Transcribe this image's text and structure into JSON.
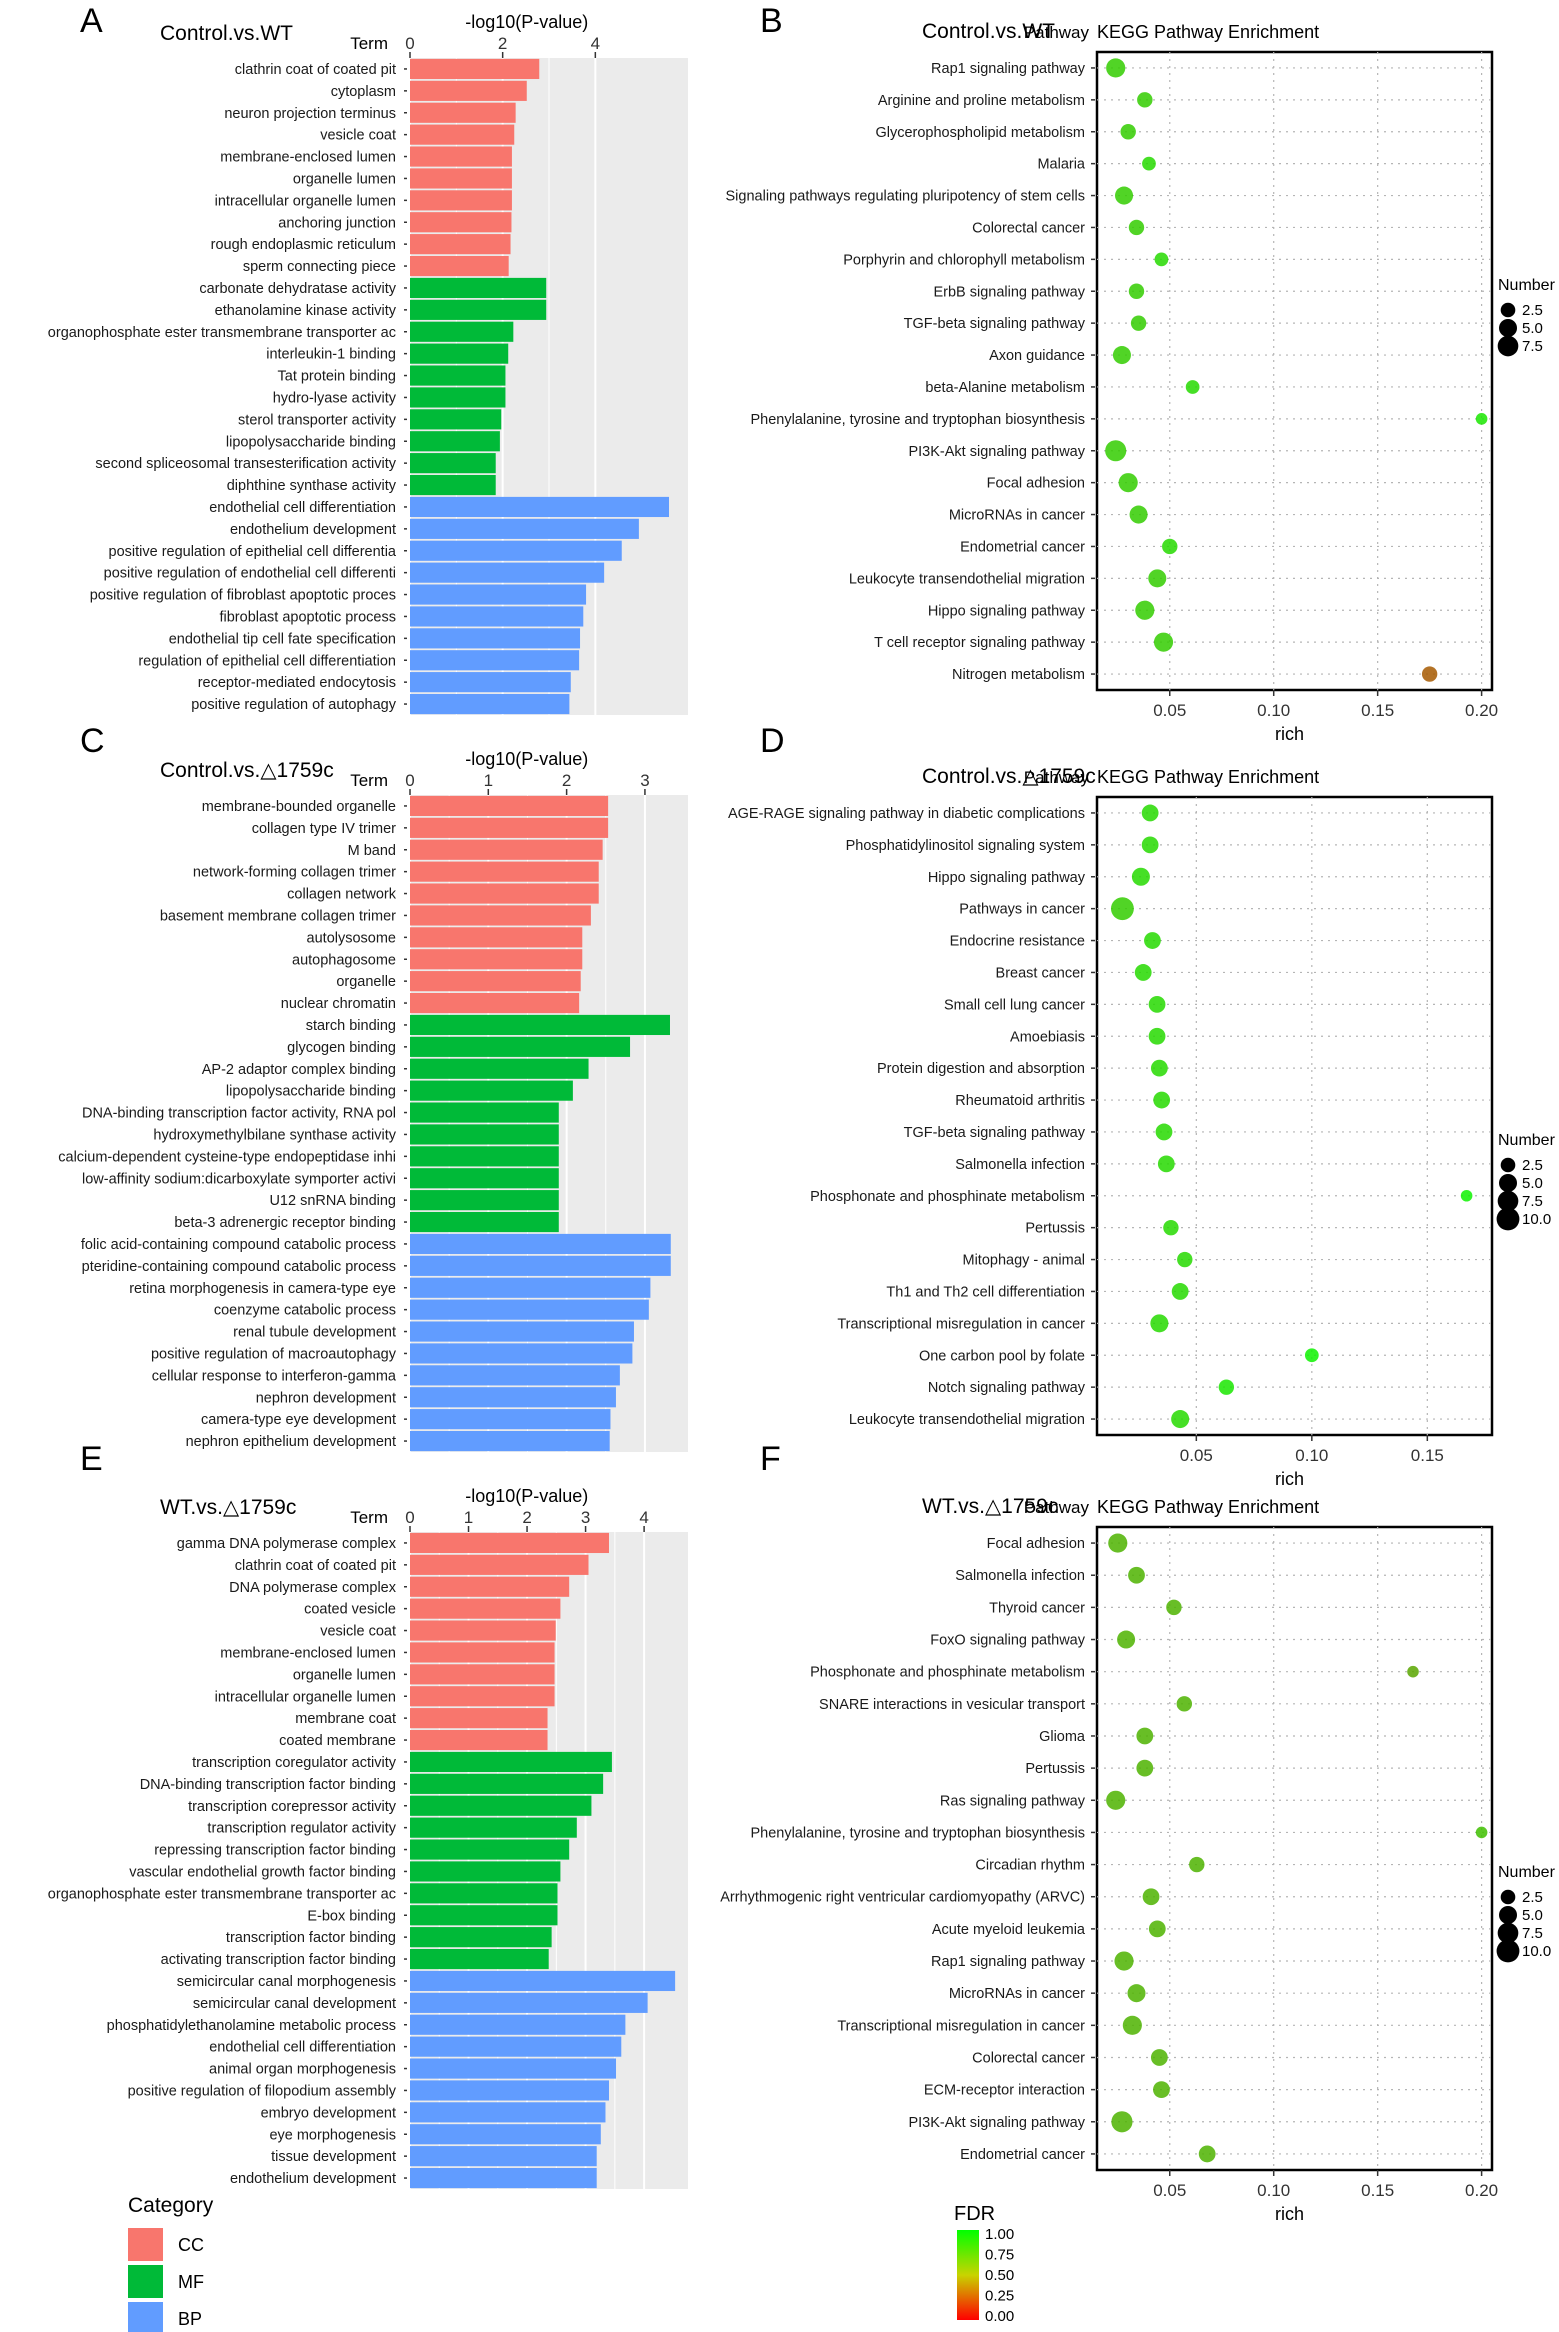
{
  "figure": {
    "x_title": "-log10(P-value)",
    "term_label": "Term",
    "pathway_label": "Pathway",
    "enrichment_title": "KEGG Pathway Enrichment",
    "rich_label": "rich",
    "number_label": "Number",
    "fdr_label": "FDR",
    "category_label": "Category"
  },
  "legends": {
    "category": [
      {
        "label": "CC",
        "color": "#F8766D"
      },
      {
        "label": "MF",
        "color": "#00BA38"
      },
      {
        "label": "BP",
        "color": "#619CFF"
      }
    ],
    "fdr": {
      "labels": [
        "1.00",
        "0.75",
        "0.50",
        "0.25",
        "0.00"
      ],
      "low_color": "#FF0000",
      "high_color": "#00FF00"
    }
  },
  "chart_data": [
    {
      "panel": "A",
      "type": "bar",
      "orientation": "horizontal",
      "title": "Control.vs.WT",
      "xlabel": "-log10(P-value)",
      "ylabel": "Term",
      "xlim": [
        0,
        6.0
      ],
      "xticks": [
        0,
        2,
        4
      ],
      "categories": [
        "clathrin coat of coated pit",
        "cytoplasm",
        "neuron projection terminus",
        "vesicle coat",
        "membrane-enclosed lumen",
        "organelle lumen",
        "intracellular organelle lumen",
        "anchoring junction",
        "rough endoplasmic reticulum",
        "sperm connecting piece",
        "carbonate dehydratase activity",
        "ethanolamine kinase activity",
        "organophosphate ester transmembrane transporter ac",
        "interleukin-1 binding",
        "Tat protein binding",
        "hydro-lyase activity",
        "sterol transporter activity",
        "lipopolysaccharide binding",
        "second spliceosomal transesterification activity",
        "diphthine synthase activity",
        "endothelial cell differentiation",
        "endothelium development",
        "positive regulation of epithelial cell differentia",
        "positive regulation of endothelial cell differenti",
        "positive regulation of fibroblast apoptotic proces",
        "fibroblast apoptotic process",
        "endothelial tip cell fate specification",
        "regulation of epithelial cell differentiation",
        "receptor-mediated endocytosis",
        "positive regulation of autophagy"
      ],
      "values": [
        2.79,
        2.52,
        2.28,
        2.25,
        2.2,
        2.2,
        2.2,
        2.19,
        2.17,
        2.13,
        2.94,
        2.94,
        2.23,
        2.12,
        2.06,
        2.06,
        1.97,
        1.94,
        1.85,
        1.85,
        5.59,
        4.94,
        4.57,
        4.19,
        3.8,
        3.74,
        3.67,
        3.65,
        3.47,
        3.44
      ],
      "groups": [
        "CC",
        "CC",
        "CC",
        "CC",
        "CC",
        "CC",
        "CC",
        "CC",
        "CC",
        "CC",
        "MF",
        "MF",
        "MF",
        "MF",
        "MF",
        "MF",
        "MF",
        "MF",
        "MF",
        "MF",
        "BP",
        "BP",
        "BP",
        "BP",
        "BP",
        "BP",
        "BP",
        "BP",
        "BP",
        "BP"
      ]
    },
    {
      "panel": "B",
      "type": "scatter",
      "title": "Control.vs.WT",
      "subtitle": "KEGG Pathway Enrichment",
      "xlabel": "rich",
      "ylabel": "Pathway",
      "xlim": [
        0.015,
        0.205
      ],
      "xticks": [
        0.05,
        0.1,
        0.15,
        0.2
      ],
      "xtick_labels": [
        "0.05",
        "0.10",
        "0.15",
        "0.20"
      ],
      "size_legend": [
        2.5,
        5.0,
        7.5
      ],
      "pathways": [
        "Rap1 signaling pathway",
        "Arginine and proline metabolism",
        "Glycerophospholipid metabolism",
        "Malaria",
        "Signaling pathways regulating pluripotency of stem cells",
        "Colorectal cancer",
        "Porphyrin and chlorophyll metabolism",
        "ErbB signaling pathway",
        "TGF-beta signaling pathway",
        "Axon guidance",
        "beta-Alanine metabolism",
        "Phenylalanine, tyrosine and tryptophan biosynthesis",
        "PI3K-Akt signaling pathway",
        "Focal adhesion",
        "MicroRNAs in cancer",
        "Endometrial cancer",
        "Leukocyte transendothelial migration",
        "Hippo signaling pathway",
        "T cell receptor signaling pathway",
        "Nitrogen metabolism"
      ],
      "rich": [
        0.024,
        0.038,
        0.03,
        0.04,
        0.028,
        0.034,
        0.046,
        0.034,
        0.035,
        0.027,
        0.061,
        0.2,
        0.024,
        0.03,
        0.035,
        0.05,
        0.044,
        0.038,
        0.047,
        0.175
      ],
      "number": [
        6,
        3,
        3,
        2,
        5,
        3,
        2,
        3,
        3,
        5,
        2,
        1,
        8,
        6,
        5,
        3,
        5,
        6,
        6,
        3
      ],
      "fdr": [
        0.8,
        0.8,
        0.8,
        0.85,
        0.8,
        0.8,
        0.85,
        0.8,
        0.8,
        0.8,
        0.85,
        0.9,
        0.8,
        0.8,
        0.8,
        0.85,
        0.8,
        0.8,
        0.8,
        0.35
      ]
    },
    {
      "panel": "C",
      "type": "bar",
      "orientation": "horizontal",
      "title": "Control.vs.△1759c",
      "xlabel": "-log10(P-value)",
      "ylabel": "Term",
      "xlim": [
        0,
        3.55
      ],
      "xticks": [
        0,
        1,
        2,
        3
      ],
      "categories": [
        "membrane-bounded organelle",
        "collagen type IV trimer",
        "M band",
        "network-forming collagen trimer",
        "collagen network",
        "basement membrane collagen trimer",
        "autolysosome",
        "autophagosome",
        "organelle",
        "nuclear chromatin",
        "starch binding",
        "glycogen binding",
        "AP-2 adaptor complex binding",
        "lipopolysaccharide binding",
        "DNA-binding transcription factor activity, RNA pol",
        "hydroxymethylbilane synthase activity",
        "calcium-dependent cysteine-type endopeptidase inhi",
        "low-affinity sodium:dicarboxylate symporter activi",
        "U12 snRNA binding",
        "beta-3 adrenergic receptor binding",
        "folic acid-containing compound catabolic process",
        "pteridine-containing compound catabolic process",
        "retina morphogenesis in camera-type eye",
        "coenzyme catabolic process",
        "renal tubule development",
        "positive regulation of macroautophagy",
        "cellular response to interferon-gamma",
        "nephron development",
        "camera-type eye development",
        "nephron epithelium development"
      ],
      "values": [
        2.53,
        2.53,
        2.46,
        2.41,
        2.41,
        2.31,
        2.2,
        2.2,
        2.18,
        2.16,
        3.32,
        2.81,
        2.28,
        2.08,
        1.9,
        1.9,
        1.9,
        1.9,
        1.9,
        1.9,
        3.33,
        3.33,
        3.07,
        3.05,
        2.86,
        2.84,
        2.68,
        2.63,
        2.56,
        2.55
      ],
      "groups": [
        "CC",
        "CC",
        "CC",
        "CC",
        "CC",
        "CC",
        "CC",
        "CC",
        "CC",
        "CC",
        "MF",
        "MF",
        "MF",
        "MF",
        "MF",
        "MF",
        "MF",
        "MF",
        "MF",
        "MF",
        "BP",
        "BP",
        "BP",
        "BP",
        "BP",
        "BP",
        "BP",
        "BP",
        "BP",
        "BP"
      ]
    },
    {
      "panel": "D",
      "type": "scatter",
      "title": "Control.vs.△1759c",
      "subtitle": "KEGG Pathway Enrichment",
      "xlabel": "rich",
      "ylabel": "Pathway",
      "xlim": [
        0.007,
        0.178
      ],
      "xticks": [
        0.05,
        0.1,
        0.15
      ],
      "xtick_labels": [
        "0.05",
        "0.10",
        "0.15"
      ],
      "size_legend": [
        2.5,
        5.0,
        7.5,
        10.0
      ],
      "pathways": [
        "AGE-RAGE signaling pathway in diabetic complications",
        "Phosphatidylinositol signaling system",
        "Hippo signaling pathway",
        "Pathways in cancer",
        "Endocrine resistance",
        "Breast cancer",
        "Small cell lung cancer",
        "Amoebiasis",
        "Protein digestion and absorption",
        "Rheumatoid arthritis",
        "TGF-beta signaling pathway",
        "Salmonella infection",
        "Phosphonate and phosphinate metabolism",
        "Pertussis",
        "Mitophagy - animal",
        "Th1 and Th2 cell differentiation",
        "Transcriptional misregulation in cancer",
        "One carbon pool by folate",
        "Notch signaling pathway",
        "Leukocyte transendothelial migration"
      ],
      "rich": [
        0.03,
        0.03,
        0.026,
        0.018,
        0.031,
        0.027,
        0.033,
        0.033,
        0.034,
        0.035,
        0.036,
        0.037,
        0.167,
        0.039,
        0.045,
        0.043,
        0.034,
        0.1,
        0.063,
        0.043
      ],
      "number": [
        4,
        4,
        5,
        10,
        4,
        4,
        4,
        4,
        4,
        4,
        4,
        4,
        1,
        3,
        3,
        4,
        5,
        2,
        3,
        5
      ],
      "fdr": [
        0.85,
        0.85,
        0.85,
        0.8,
        0.85,
        0.85,
        0.85,
        0.85,
        0.85,
        0.85,
        0.85,
        0.85,
        0.95,
        0.85,
        0.85,
        0.85,
        0.85,
        0.95,
        0.9,
        0.85
      ]
    },
    {
      "panel": "E",
      "type": "bar",
      "orientation": "horizontal",
      "title": "WT.vs.△1759c",
      "xlabel": "-log10(P-value)",
      "ylabel": "Term",
      "xlim": [
        0,
        4.75
      ],
      "xticks": [
        0,
        1,
        2,
        3,
        4
      ],
      "categories": [
        "gamma DNA polymerase complex",
        "clathrin coat of coated pit",
        "DNA polymerase complex",
        "coated vesicle",
        "vesicle coat",
        "membrane-enclosed lumen",
        "organelle lumen",
        "intracellular organelle lumen",
        "membrane coat",
        "coated membrane",
        "transcription coregulator activity",
        "DNA-binding transcription factor binding",
        "transcription corepressor activity",
        "transcription regulator activity",
        "repressing transcription factor binding",
        "vascular endothelial growth factor binding",
        "organophosphate ester transmembrane transporter ac",
        "E-box binding",
        "transcription factor binding",
        "activating transcription factor binding",
        "semicircular canal morphogenesis",
        "semicircular canal development",
        "phosphatidylethanolamine metabolic process",
        "endothelial cell differentiation",
        "animal organ morphogenesis",
        "positive regulation of filopodium assembly",
        "embryo development",
        "eye morphogenesis",
        "tissue development",
        "endothelium development"
      ],
      "values": [
        3.4,
        3.05,
        2.72,
        2.57,
        2.49,
        2.47,
        2.47,
        2.47,
        2.35,
        2.35,
        3.45,
        3.3,
        3.1,
        2.85,
        2.72,
        2.57,
        2.52,
        2.52,
        2.42,
        2.37,
        4.53,
        4.06,
        3.68,
        3.61,
        3.52,
        3.4,
        3.34,
        3.26,
        3.19,
        3.19
      ],
      "groups": [
        "CC",
        "CC",
        "CC",
        "CC",
        "CC",
        "CC",
        "CC",
        "CC",
        "CC",
        "CC",
        "MF",
        "MF",
        "MF",
        "MF",
        "MF",
        "MF",
        "MF",
        "MF",
        "MF",
        "MF",
        "BP",
        "BP",
        "BP",
        "BP",
        "BP",
        "BP",
        "BP",
        "BP",
        "BP",
        "BP"
      ]
    },
    {
      "panel": "F",
      "type": "scatter",
      "title": "WT.vs.△1759c",
      "subtitle": "KEGG Pathway Enrichment",
      "xlabel": "rich",
      "ylabel": "Pathway",
      "xlim": [
        0.015,
        0.205
      ],
      "xticks": [
        0.05,
        0.1,
        0.15,
        0.2
      ],
      "xtick_labels": [
        "0.05",
        "0.10",
        "0.15",
        "0.20"
      ],
      "size_legend": [
        2.5,
        5.0,
        7.5,
        10.0
      ],
      "pathways": [
        "Focal adhesion",
        "Salmonella infection",
        "Thyroid cancer",
        "FoxO signaling pathway",
        "Phosphonate and phosphinate metabolism",
        "SNARE interactions in vesicular transport",
        "Glioma",
        "Pertussis",
        "Ras signaling pathway",
        "Phenylalanine, tyrosine and tryptophan biosynthesis",
        "Circadian rhythm",
        "Arrhythmogenic right ventricular cardiomyopathy (ARVC)",
        "Acute myeloid leukemia",
        "Rap1 signaling pathway",
        "MicroRNAs in cancer",
        "Transcriptional misregulation in cancer",
        "Colorectal cancer",
        "ECM-receptor interaction",
        "PI3K-Akt signaling pathway",
        "Endometrial cancer"
      ],
      "rich": [
        0.025,
        0.034,
        0.052,
        0.029,
        0.167,
        0.057,
        0.038,
        0.038,
        0.024,
        0.2,
        0.063,
        0.041,
        0.044,
        0.028,
        0.034,
        0.032,
        0.045,
        0.046,
        0.027,
        0.068
      ],
      "number": [
        6,
        4,
        3,
        5,
        1,
        3,
        4,
        4,
        6,
        1,
        3,
        4,
        4,
        6,
        5,
        6,
        4,
        4,
        8,
        4
      ],
      "fdr": [
        0.7,
        0.7,
        0.7,
        0.7,
        0.65,
        0.7,
        0.7,
        0.7,
        0.7,
        0.75,
        0.7,
        0.7,
        0.7,
        0.7,
        0.7,
        0.7,
        0.7,
        0.7,
        0.7,
        0.7
      ]
    }
  ]
}
